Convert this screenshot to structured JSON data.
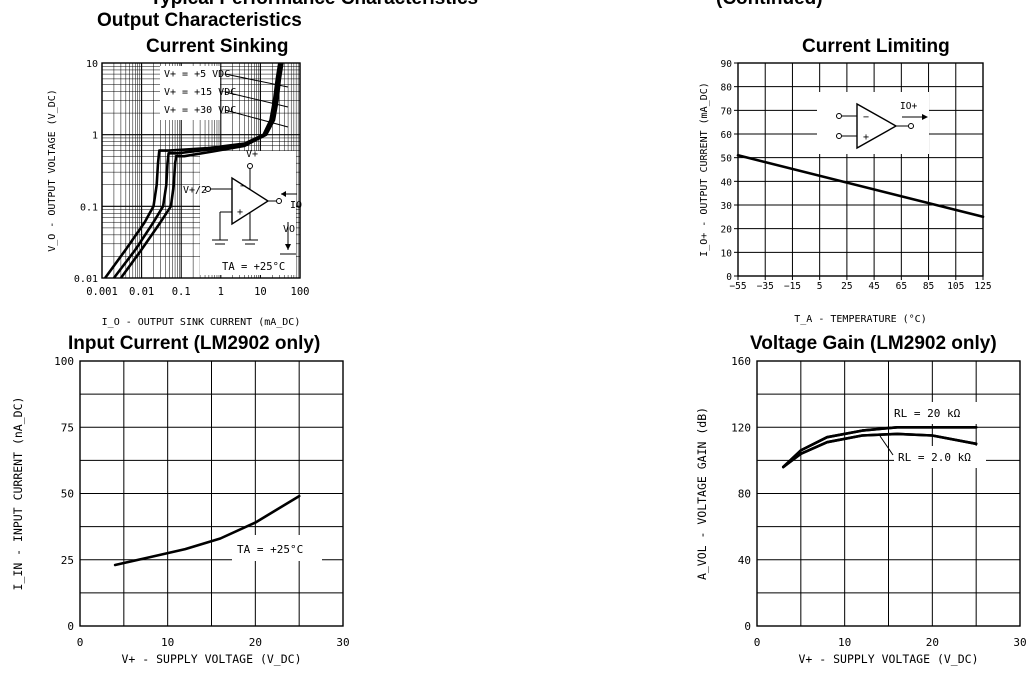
{
  "page": {
    "top_fragment_left": "Typical Performance Characteristics",
    "top_fragment_right": "(Continued)"
  },
  "chart_data": [
    {
      "id": "sinking",
      "type": "line",
      "title": "Output Characteristics",
      "subtitle": "Current Sinking",
      "xlabel": "I_O - OUTPUT SINK CURRENT (mA_DC)",
      "ylabel": "V_O - OUTPUT VOLTAGE (V_DC)",
      "xscale": "log",
      "yscale": "log",
      "xlim": [
        0.001,
        100
      ],
      "ylim": [
        0.01,
        10
      ],
      "xticks": [
        0.001,
        0.01,
        0.1,
        1,
        10,
        100
      ],
      "xtick_labels": [
        "0.001",
        "0.01",
        "0.1",
        "1",
        "10",
        "100"
      ],
      "yticks": [
        0.01,
        0.1,
        1,
        10
      ],
      "ytick_labels": [
        "0.01",
        "0.1",
        "1",
        "10"
      ],
      "grid": true,
      "series": [
        {
          "name": "V+ = +5 VDC",
          "x": [
            0.0012,
            0.004,
            0.012,
            0.02,
            0.024,
            0.026,
            0.028,
            0.05,
            0.5,
            4,
            12,
            18,
            22,
            26,
            30
          ],
          "y": [
            0.01,
            0.025,
            0.06,
            0.1,
            0.2,
            0.4,
            0.6,
            0.6,
            0.65,
            0.75,
            1.0,
            1.6,
            3,
            6,
            10
          ]
        },
        {
          "name": "V+ = +15 VDC",
          "x": [
            0.002,
            0.007,
            0.02,
            0.035,
            0.042,
            0.045,
            0.048,
            0.08,
            0.5,
            4,
            13,
            20,
            24,
            28,
            33
          ],
          "y": [
            0.01,
            0.025,
            0.06,
            0.1,
            0.2,
            0.4,
            0.55,
            0.55,
            0.62,
            0.72,
            1.0,
            1.6,
            3,
            6,
            10
          ]
        },
        {
          "name": "V+ = +30 VDC",
          "x": [
            0.003,
            0.01,
            0.03,
            0.055,
            0.065,
            0.07,
            0.075,
            0.12,
            0.6,
            4,
            14,
            22,
            27,
            31,
            36
          ],
          "y": [
            0.01,
            0.025,
            0.06,
            0.1,
            0.2,
            0.4,
            0.5,
            0.5,
            0.58,
            0.7,
            1.0,
            1.6,
            3,
            6,
            10
          ]
        }
      ],
      "annotations": [
        "V+ = +5 VDC",
        "V+ = +15 VDC",
        "V+ = +30 VDC",
        "TA = +25°C"
      ],
      "inset": {
        "labels": [
          "V+",
          "V+/2",
          "IO",
          "VO"
        ]
      }
    },
    {
      "id": "limiting",
      "type": "line",
      "title": "Current Limiting",
      "xlabel": "T_A - TEMPERATURE (°C)",
      "ylabel": "I_O+ - OUTPUT CURRENT (mA_DC)",
      "xlim": [
        -55,
        125
      ],
      "ylim": [
        0,
        90
      ],
      "xticks": [
        -55,
        -35,
        -15,
        5,
        25,
        45,
        65,
        85,
        105,
        125
      ],
      "xtick_labels": [
        "−55",
        "−35",
        "−15",
        "5",
        "25",
        "45",
        "65",
        "85",
        "105",
        "125"
      ],
      "yticks": [
        0,
        10,
        20,
        30,
        40,
        50,
        60,
        70,
        80,
        90
      ],
      "ytick_labels": [
        "0",
        "10",
        "20",
        "30",
        "40",
        "50",
        "60",
        "70",
        "80",
        "90"
      ],
      "grid": true,
      "series": [
        {
          "x": [
            -55,
            125
          ],
          "y": [
            51,
            25
          ]
        }
      ],
      "inset": {
        "labels": [
          "IO+"
        ]
      }
    },
    {
      "id": "input",
      "type": "line",
      "title": "Input Current (LM2902 only)",
      "xlabel": "V+ - SUPPLY VOLTAGE (V_DC)",
      "ylabel": "I_IN - INPUT CURRENT (nA_DC)",
      "xlim": [
        0,
        30
      ],
      "ylim": [
        0,
        100
      ],
      "xticks": [
        0,
        10,
        20,
        30
      ],
      "xtick_labels": [
        "0",
        "10",
        "20",
        "30"
      ],
      "yticks": [
        0,
        25,
        50,
        75,
        100
      ],
      "ytick_labels": [
        "0",
        "25",
        "50",
        "75",
        "100"
      ],
      "grid": true,
      "series": [
        {
          "x": [
            4,
            8,
            12,
            16,
            20,
            25
          ],
          "y": [
            23,
            26,
            29,
            33,
            39,
            49
          ]
        }
      ],
      "annotations": [
        "TA = +25°C"
      ]
    },
    {
      "id": "gain",
      "type": "line",
      "title": "Voltage Gain (LM2902 only)",
      "xlabel": "V+ - SUPPLY VOLTAGE (V_DC)",
      "ylabel": "A_VOL - VOLTAGE GAIN (dB)",
      "xlim": [
        0,
        30
      ],
      "ylim": [
        0,
        160
      ],
      "xticks": [
        0,
        10,
        20,
        30
      ],
      "xtick_labels": [
        "0",
        "10",
        "20",
        "30"
      ],
      "yticks": [
        0,
        40,
        80,
        120,
        160
      ],
      "ytick_labels": [
        "0",
        "40",
        "80",
        "120",
        "160"
      ],
      "grid": true,
      "series": [
        {
          "name": "RL = 20 kΩ",
          "x": [
            3,
            5,
            8,
            12,
            16,
            20,
            25
          ],
          "y": [
            96,
            106,
            114,
            118,
            120,
            120,
            120
          ]
        },
        {
          "name": "RL = 2.0 kΩ",
          "x": [
            3,
            5,
            8,
            12,
            16,
            20,
            25
          ],
          "y": [
            96,
            104,
            111,
            115,
            116,
            115,
            110
          ]
        }
      ],
      "annotations": [
        "RL = 20 kΩ",
        "RL = 2.0 kΩ"
      ]
    }
  ]
}
